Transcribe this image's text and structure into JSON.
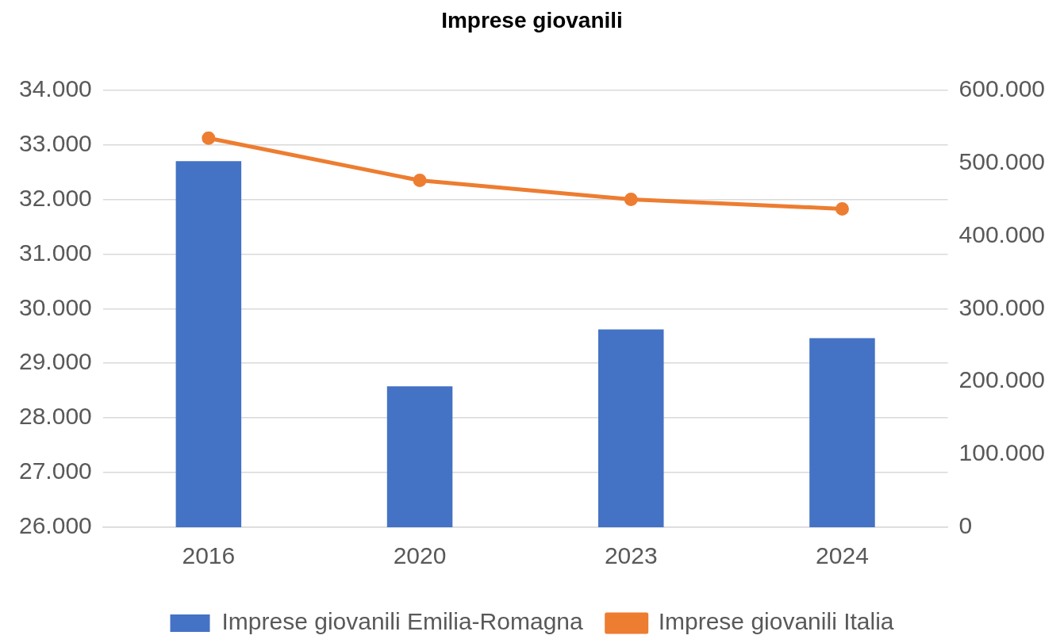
{
  "chart_data": {
    "type": "bar",
    "title": "Imprese giovanili",
    "categories": [
      "2016",
      "2020",
      "2023",
      "2024"
    ],
    "series": [
      {
        "name": "Imprese giovanili Emilia-Romagna",
        "color": "#4472c4",
        "values": [
          32700,
          28580,
          29620,
          29460
        ]
      },
      {
        "name": "Imprese giovanili Italia",
        "type": "line",
        "axis": "y2",
        "color": "#ed7d31",
        "values": [
          534000,
          476000,
          450000,
          437000
        ]
      }
    ],
    "ylim": [
      26000,
      34000
    ],
    "yticks": [
      {
        "value": 26000,
        "label": "26.000"
      },
      {
        "value": 27000,
        "label": "27.000"
      },
      {
        "value": 28000,
        "label": "28.000"
      },
      {
        "value": 29000,
        "label": "29.000"
      },
      {
        "value": 30000,
        "label": "30.000"
      },
      {
        "value": 31000,
        "label": "31.000"
      },
      {
        "value": 32000,
        "label": "32.000"
      },
      {
        "value": 33000,
        "label": "33.000"
      },
      {
        "value": 34000,
        "label": "34.000"
      }
    ],
    "y2lim": [
      0,
      600000
    ],
    "y2ticks": [
      0,
      {
        "value": 100000,
        "label": "100.000"
      },
      {
        "value": 200000,
        "label": "200.000"
      },
      {
        "value": 300000,
        "label": "300.000"
      },
      {
        "value": 400000,
        "label": "400.000"
      },
      {
        "value": 500000,
        "label": "500.000"
      },
      {
        "value": 600000,
        "label": "600.000"
      }
    ],
    "grid": "y",
    "legend": "bottom",
    "marker": "circle"
  }
}
